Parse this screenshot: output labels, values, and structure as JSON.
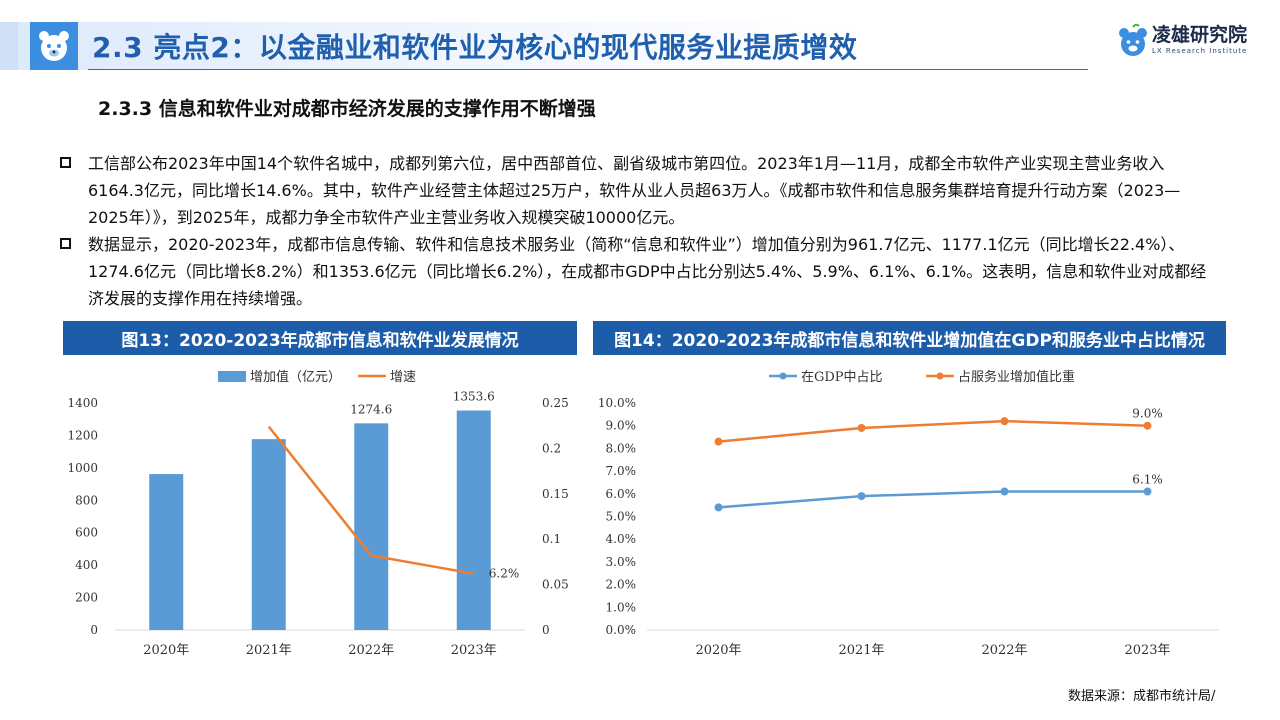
{
  "header": {
    "title": "2.3 亮点2：以金融业和软件业为核心的现代服务业提质增效",
    "brand_name": "凌雄研究院",
    "brand_sub": "LX Research Institute"
  },
  "subtitle": "2.3.3 信息和软件业对成都市经济发展的支撑作用不断增强",
  "bullets": [
    "工信部公布2023年中国14个软件名城中，成都列第六位，居中西部首位、副省级城市第四位。2023年1月—11月，成都全市软件产业实现主营业务收入6164.3亿元，同比增长14.6%。其中，软件产业经营主体超过25万户，软件从业人员超63万人。《成都市软件和信息服务集群培育提升行动方案（2023—2025年）》，到2025年，成都力争全市软件产业主营业务收入规模突破10000亿元。",
    "数据显示，2020-2023年，成都市信息传输、软件和信息技术服务业（简称“信息和软件业”）增加值分别为961.7亿元、1177.1亿元（同比增长22.4%）、1274.6亿元（同比增长8.2%）和1353.6亿元（同比增长6.2%），在成都市GDP中占比分别达5.4%、5.9%、6.1%、6.1%。这表明，信息和软件业对成都经济发展的支撑作用在持续增强。"
  ],
  "colors": {
    "bar": "#5b9bd5",
    "orange": "#ed7d31",
    "blue_line": "#5b9bd5",
    "header_bg": "#1d5ca8"
  },
  "chart_data": [
    {
      "type": "bar",
      "title": "图13：2020-2023年成都市信息和软件业发展情况",
      "categories": [
        "2020年",
        "2021年",
        "2022年",
        "2023年"
      ],
      "series": [
        {
          "name": "增加值（亿元）",
          "type": "bar",
          "axis": "left",
          "values": [
            961.7,
            1177.1,
            1274.6,
            1353.6
          ]
        },
        {
          "name": "增速",
          "type": "line",
          "axis": "right",
          "values": [
            null,
            0.224,
            0.082,
            0.062
          ]
        }
      ],
      "y_left": {
        "min": 0,
        "max": 1400,
        "ticks": [
          "0",
          "200",
          "400",
          "600",
          "800",
          "1000",
          "1200",
          "1400"
        ]
      },
      "y_right": {
        "min": 0,
        "max": 0.25,
        "ticks": [
          "0",
          "0.05",
          "0.1",
          "0.15",
          "0.2",
          "0.25"
        ]
      },
      "data_labels": {
        "bar_2022": "1274.6",
        "bar_2023": "1353.6",
        "line_2023": "6.2%"
      },
      "legend": "top",
      "grid": false
    },
    {
      "type": "line",
      "title": "图14：2020-2023年成都市信息和软件业增加值在GDP和服务业中占比情况",
      "categories": [
        "2020年",
        "2021年",
        "2022年",
        "2023年"
      ],
      "series": [
        {
          "name": "在GDP中占比",
          "values": [
            5.4,
            5.9,
            6.1,
            6.1
          ]
        },
        {
          "name": "占服务业增加值比重",
          "values": [
            8.3,
            8.9,
            9.2,
            9.0
          ]
        }
      ],
      "y": {
        "min": 0,
        "max": 10,
        "ticks": [
          "0.0%",
          "1.0%",
          "2.0%",
          "3.0%",
          "4.0%",
          "5.0%",
          "6.0%",
          "7.0%",
          "8.0%",
          "9.0%",
          "10.0%"
        ]
      },
      "data_labels": {
        "blue_2023": "6.1%",
        "orange_2023": "9.0%"
      },
      "legend": "top",
      "grid": false
    }
  ],
  "source": "数据来源：成都市统计局/"
}
